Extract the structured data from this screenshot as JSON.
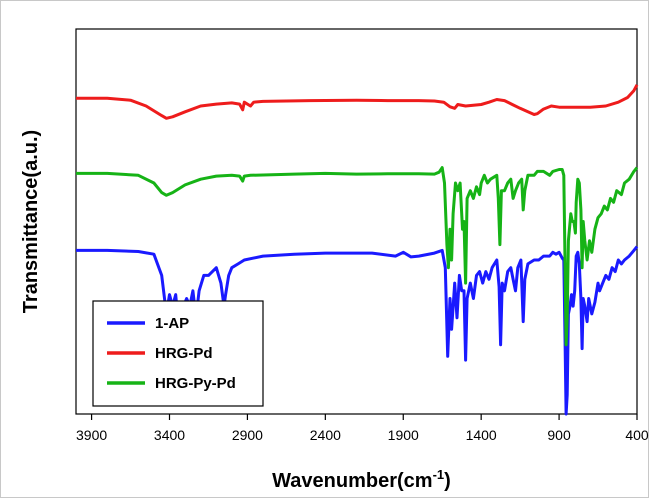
{
  "chart_data": {
    "type": "line",
    "xlabel": "Wavenumber(cm",
    "xlabel_superscript": "-1",
    "xlabel_suffix": ")",
    "ylabel": "Transmittance(a.u.)",
    "xlim": [
      4000,
      400
    ],
    "x_reversed": true,
    "xticks": [
      3900,
      3400,
      2900,
      2400,
      1900,
      1400,
      900,
      400
    ],
    "y_ticks_shown": false,
    "grid": false,
    "legend_position": "bottom-left",
    "series": [
      {
        "name": "1-AP",
        "color": "#1a1aff",
        "points": [
          [
            4000,
            0.575
          ],
          [
            3800,
            0.575
          ],
          [
            3600,
            0.578
          ],
          [
            3500,
            0.585
          ],
          [
            3450,
            0.64
          ],
          [
            3420,
            0.74
          ],
          [
            3400,
            0.69
          ],
          [
            3380,
            0.72
          ],
          [
            3360,
            0.69
          ],
          [
            3345,
            0.76
          ],
          [
            3330,
            0.76
          ],
          [
            3310,
            0.72
          ],
          [
            3290,
            0.7
          ],
          [
            3270,
            0.72
          ],
          [
            3250,
            0.68
          ],
          [
            3230,
            0.75
          ],
          [
            3210,
            0.68
          ],
          [
            3180,
            0.64
          ],
          [
            3150,
            0.64
          ],
          [
            3100,
            0.62
          ],
          [
            3070,
            0.66
          ],
          [
            3050,
            0.72
          ],
          [
            3040,
            0.69
          ],
          [
            3020,
            0.64
          ],
          [
            3000,
            0.62
          ],
          [
            2960,
            0.61
          ],
          [
            2920,
            0.6
          ],
          [
            2800,
            0.59
          ],
          [
            2600,
            0.585
          ],
          [
            2400,
            0.582
          ],
          [
            2100,
            0.582
          ],
          [
            1950,
            0.59
          ],
          [
            1900,
            0.58
          ],
          [
            1850,
            0.592
          ],
          [
            1800,
            0.59
          ],
          [
            1700,
            0.582
          ],
          [
            1650,
            0.575
          ],
          [
            1630,
            0.62
          ],
          [
            1615,
            0.85
          ],
          [
            1600,
            0.7
          ],
          [
            1590,
            0.78
          ],
          [
            1570,
            0.66
          ],
          [
            1555,
            0.75
          ],
          [
            1540,
            0.64
          ],
          [
            1525,
            0.68
          ],
          [
            1510,
            0.68
          ],
          [
            1500,
            0.86
          ],
          [
            1490,
            0.7
          ],
          [
            1470,
            0.66
          ],
          [
            1450,
            0.7
          ],
          [
            1430,
            0.64
          ],
          [
            1410,
            0.63
          ],
          [
            1390,
            0.66
          ],
          [
            1370,
            0.63
          ],
          [
            1350,
            0.65
          ],
          [
            1330,
            0.62
          ],
          [
            1300,
            0.6
          ],
          [
            1285,
            0.67
          ],
          [
            1275,
            0.82
          ],
          [
            1265,
            0.66
          ],
          [
            1250,
            0.68
          ],
          [
            1230,
            0.63
          ],
          [
            1210,
            0.62
          ],
          [
            1195,
            0.65
          ],
          [
            1180,
            0.68
          ],
          [
            1165,
            0.62
          ],
          [
            1145,
            0.6
          ],
          [
            1130,
            0.76
          ],
          [
            1120,
            0.65
          ],
          [
            1100,
            0.61
          ],
          [
            1060,
            0.6
          ],
          [
            1030,
            0.6
          ],
          [
            1000,
            0.59
          ],
          [
            960,
            0.59
          ],
          [
            940,
            0.58
          ],
          [
            920,
            0.585
          ],
          [
            900,
            0.58
          ],
          [
            880,
            0.595
          ],
          [
            870,
            0.6
          ],
          [
            862,
            0.8
          ],
          [
            855,
            1.04
          ],
          [
            848,
            0.95
          ],
          [
            840,
            0.74
          ],
          [
            830,
            0.72
          ],
          [
            820,
            0.69
          ],
          [
            810,
            0.72
          ],
          [
            800,
            0.68
          ],
          [
            790,
            0.59
          ],
          [
            780,
            0.58
          ],
          [
            770,
            0.61
          ],
          [
            760,
            0.7
          ],
          [
            752,
            0.83
          ],
          [
            745,
            0.7
          ],
          [
            735,
            0.72
          ],
          [
            720,
            0.76
          ],
          [
            710,
            0.7
          ],
          [
            690,
            0.74
          ],
          [
            670,
            0.71
          ],
          [
            650,
            0.66
          ],
          [
            640,
            0.68
          ],
          [
            620,
            0.66
          ],
          [
            600,
            0.64
          ],
          [
            580,
            0.65
          ],
          [
            560,
            0.62
          ],
          [
            540,
            0.63
          ],
          [
            520,
            0.6
          ],
          [
            500,
            0.61
          ],
          [
            480,
            0.6
          ],
          [
            450,
            0.59
          ],
          [
            420,
            0.575
          ],
          [
            400,
            0.565
          ]
        ]
      },
      {
        "name": "HRG-Pd",
        "color": "#ee1c1c",
        "points": [
          [
            4000,
            0.18
          ],
          [
            3800,
            0.18
          ],
          [
            3650,
            0.185
          ],
          [
            3550,
            0.2
          ],
          [
            3450,
            0.225
          ],
          [
            3420,
            0.232
          ],
          [
            3380,
            0.228
          ],
          [
            3300,
            0.215
          ],
          [
            3200,
            0.2
          ],
          [
            3100,
            0.195
          ],
          [
            3000,
            0.192
          ],
          [
            2950,
            0.195
          ],
          [
            2930,
            0.21
          ],
          [
            2920,
            0.19
          ],
          [
            2880,
            0.2
          ],
          [
            2860,
            0.19
          ],
          [
            2800,
            0.188
          ],
          [
            2500,
            0.186
          ],
          [
            2200,
            0.185
          ],
          [
            2000,
            0.186
          ],
          [
            1800,
            0.186
          ],
          [
            1700,
            0.187
          ],
          [
            1640,
            0.19
          ],
          [
            1600,
            0.202
          ],
          [
            1570,
            0.206
          ],
          [
            1550,
            0.196
          ],
          [
            1500,
            0.2
          ],
          [
            1450,
            0.198
          ],
          [
            1400,
            0.196
          ],
          [
            1350,
            0.19
          ],
          [
            1300,
            0.183
          ],
          [
            1250,
            0.186
          ],
          [
            1200,
            0.196
          ],
          [
            1150,
            0.206
          ],
          [
            1100,
            0.215
          ],
          [
            1060,
            0.222
          ],
          [
            1040,
            0.22
          ],
          [
            1000,
            0.208
          ],
          [
            950,
            0.2
          ],
          [
            900,
            0.203
          ],
          [
            800,
            0.203
          ],
          [
            700,
            0.203
          ],
          [
            600,
            0.2
          ],
          [
            520,
            0.19
          ],
          [
            460,
            0.178
          ],
          [
            420,
            0.16
          ],
          [
            400,
            0.145
          ]
        ]
      },
      {
        "name": "HRG-Py-Pd",
        "color": "#16b316",
        "points": [
          [
            4000,
            0.375
          ],
          [
            3800,
            0.375
          ],
          [
            3600,
            0.38
          ],
          [
            3500,
            0.4
          ],
          [
            3450,
            0.425
          ],
          [
            3420,
            0.432
          ],
          [
            3380,
            0.425
          ],
          [
            3300,
            0.405
          ],
          [
            3200,
            0.39
          ],
          [
            3100,
            0.382
          ],
          [
            3000,
            0.38
          ],
          [
            2950,
            0.382
          ],
          [
            2930,
            0.395
          ],
          [
            2920,
            0.382
          ],
          [
            2880,
            0.38
          ],
          [
            2600,
            0.377
          ],
          [
            2400,
            0.375
          ],
          [
            2200,
            0.377
          ],
          [
            2000,
            0.376
          ],
          [
            1800,
            0.376
          ],
          [
            1700,
            0.377
          ],
          [
            1670,
            0.372
          ],
          [
            1650,
            0.36
          ],
          [
            1635,
            0.4
          ],
          [
            1620,
            0.56
          ],
          [
            1610,
            0.62
          ],
          [
            1600,
            0.52
          ],
          [
            1590,
            0.6
          ],
          [
            1580,
            0.48
          ],
          [
            1565,
            0.4
          ],
          [
            1550,
            0.42
          ],
          [
            1535,
            0.4
          ],
          [
            1520,
            0.52
          ],
          [
            1510,
            0.5
          ],
          [
            1500,
            0.66
          ],
          [
            1490,
            0.44
          ],
          [
            1470,
            0.42
          ],
          [
            1450,
            0.44
          ],
          [
            1430,
            0.41
          ],
          [
            1410,
            0.43
          ],
          [
            1400,
            0.4
          ],
          [
            1380,
            0.38
          ],
          [
            1360,
            0.4
          ],
          [
            1340,
            0.39
          ],
          [
            1300,
            0.38
          ],
          [
            1290,
            0.44
          ],
          [
            1280,
            0.56
          ],
          [
            1270,
            0.42
          ],
          [
            1250,
            0.42
          ],
          [
            1230,
            0.4
          ],
          [
            1210,
            0.39
          ],
          [
            1195,
            0.44
          ],
          [
            1180,
            0.42
          ],
          [
            1160,
            0.4
          ],
          [
            1140,
            0.39
          ],
          [
            1130,
            0.47
          ],
          [
            1120,
            0.42
          ],
          [
            1100,
            0.38
          ],
          [
            1080,
            0.38
          ],
          [
            1060,
            0.38
          ],
          [
            1040,
            0.37
          ],
          [
            1000,
            0.37
          ],
          [
            960,
            0.38
          ],
          [
            940,
            0.37
          ],
          [
            900,
            0.365
          ],
          [
            880,
            0.365
          ],
          [
            870,
            0.38
          ],
          [
            862,
            0.6
          ],
          [
            855,
            0.82
          ],
          [
            848,
            0.75
          ],
          [
            840,
            0.55
          ],
          [
            825,
            0.48
          ],
          [
            815,
            0.5
          ],
          [
            805,
            0.5
          ],
          [
            795,
            0.53
          ],
          [
            790,
            0.45
          ],
          [
            780,
            0.39
          ],
          [
            770,
            0.4
          ],
          [
            760,
            0.47
          ],
          [
            752,
            0.62
          ],
          [
            745,
            0.5
          ],
          [
            735,
            0.55
          ],
          [
            720,
            0.6
          ],
          [
            705,
            0.55
          ],
          [
            690,
            0.58
          ],
          [
            670,
            0.52
          ],
          [
            650,
            0.49
          ],
          [
            630,
            0.48
          ],
          [
            610,
            0.46
          ],
          [
            590,
            0.47
          ],
          [
            570,
            0.44
          ],
          [
            550,
            0.45
          ],
          [
            530,
            0.42
          ],
          [
            500,
            0.43
          ],
          [
            480,
            0.4
          ],
          [
            450,
            0.39
          ],
          [
            420,
            0.37
          ],
          [
            400,
            0.36
          ]
        ]
      }
    ]
  }
}
